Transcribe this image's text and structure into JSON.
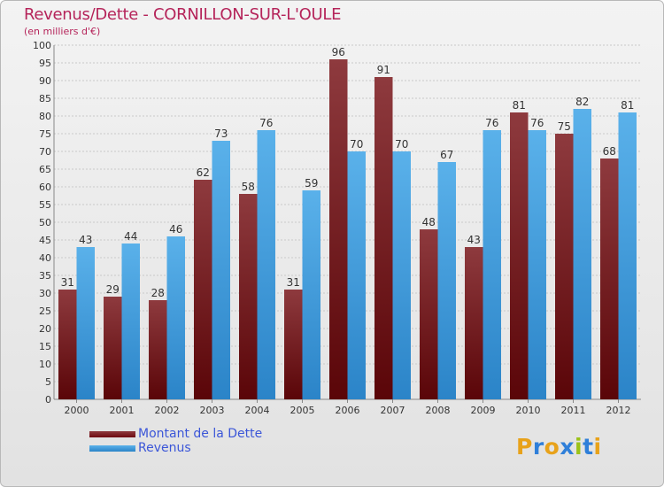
{
  "title": "Revenus/Dette - CORNILLON-SUR-L'OULE",
  "subtitle": "(en milliers d'€)",
  "brand": {
    "text": "Proxiti",
    "colors": [
      "#e8a21a",
      "#2f7fd9",
      "#e8a21a",
      "#2f7fd9",
      "#9bc21a",
      "#2f7fd9",
      "#e8a21a"
    ]
  },
  "colors": {
    "title": "#b5245a",
    "dette": "#6e0a10",
    "dette_light": "#8e3a3e",
    "revenus": "#5ab1ea",
    "revenus_dark": "#2b84c8",
    "legend_text": "#3b56d8"
  },
  "chart_data": {
    "type": "bar",
    "title": "Revenus/Dette - CORNILLON-SUR-L'OULE",
    "subtitle": "(en milliers d'€)",
    "categories": [
      "2000",
      "2001",
      "2002",
      "2003",
      "2004",
      "2005",
      "2006",
      "2007",
      "2008",
      "2009",
      "2010",
      "2011",
      "2012"
    ],
    "series": [
      {
        "name": "Montant de la Dette",
        "values": [
          31,
          29,
          28,
          62,
          58,
          31,
          96,
          91,
          48,
          43,
          81,
          75,
          68
        ]
      },
      {
        "name": "Revenus",
        "values": [
          43,
          44,
          46,
          73,
          76,
          59,
          70,
          70,
          67,
          76,
          76,
          82,
          81
        ]
      }
    ],
    "yticks": [
      0,
      5,
      10,
      15,
      20,
      25,
      30,
      35,
      40,
      45,
      50,
      55,
      60,
      65,
      70,
      75,
      80,
      85,
      90,
      95,
      100
    ],
    "ylim": [
      0,
      100
    ],
    "grid": true,
    "legend": "bottom-left",
    "data_labels": true
  }
}
